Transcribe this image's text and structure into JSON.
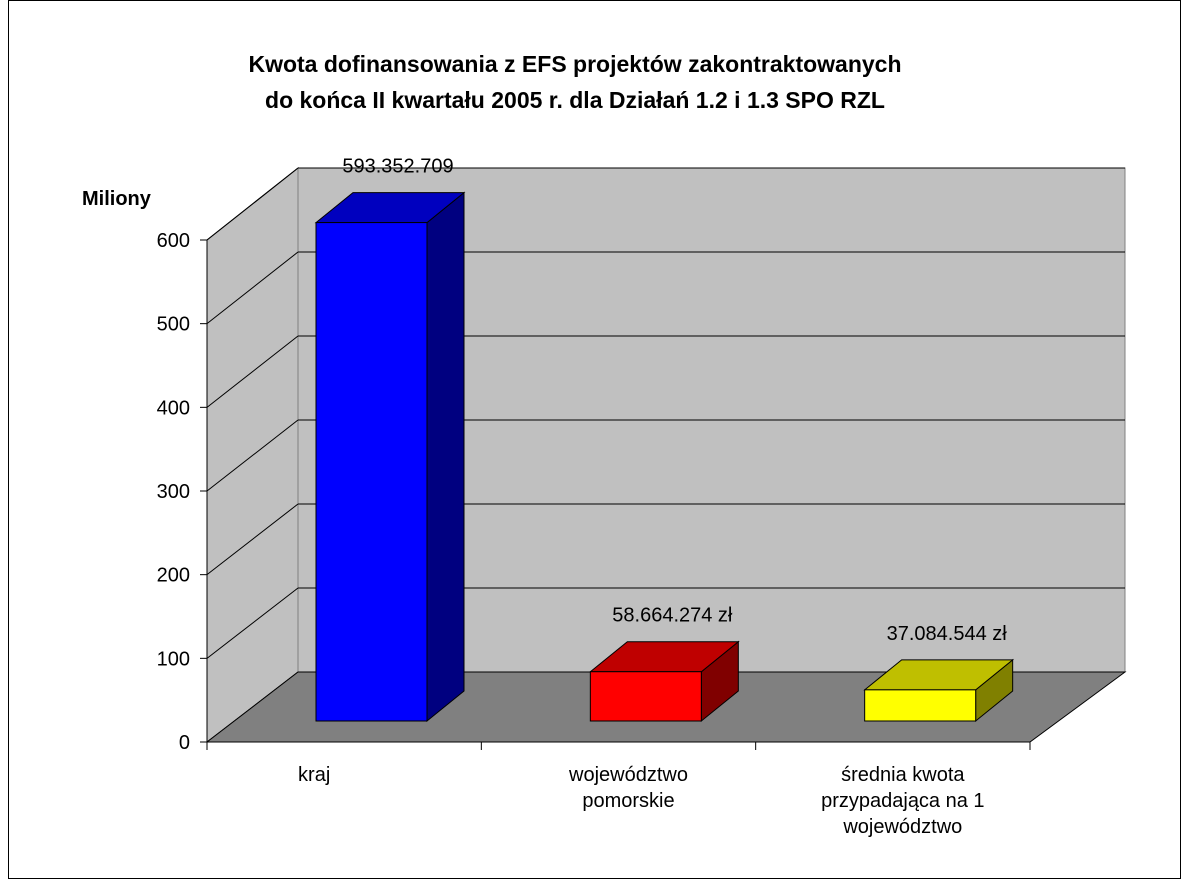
{
  "chart_data": {
    "type": "bar3d",
    "title": [
      "Kwota dofinansowania z EFS projektów zakontraktowanych",
      "do końca II kwartału 2005 r. dla Działań 1.2 i 1.3 SPO RZL"
    ],
    "y_label": "Miliony",
    "categories": [
      "kraj",
      "województwo pomorskie",
      "średnia kwota przypadająca na 1 województwo"
    ],
    "values": [
      593.352709,
      58.664274,
      37.084544
    ],
    "value_labels": [
      "593.352.709",
      "58.664.274 zł",
      "37.084.544 zł"
    ],
    "colors": [
      "#0000ff",
      "#ff0000",
      "#ffff00"
    ],
    "ylim": [
      0,
      600
    ],
    "yticks": [
      0,
      100,
      200,
      300,
      400,
      500,
      600
    ],
    "grid": true
  }
}
